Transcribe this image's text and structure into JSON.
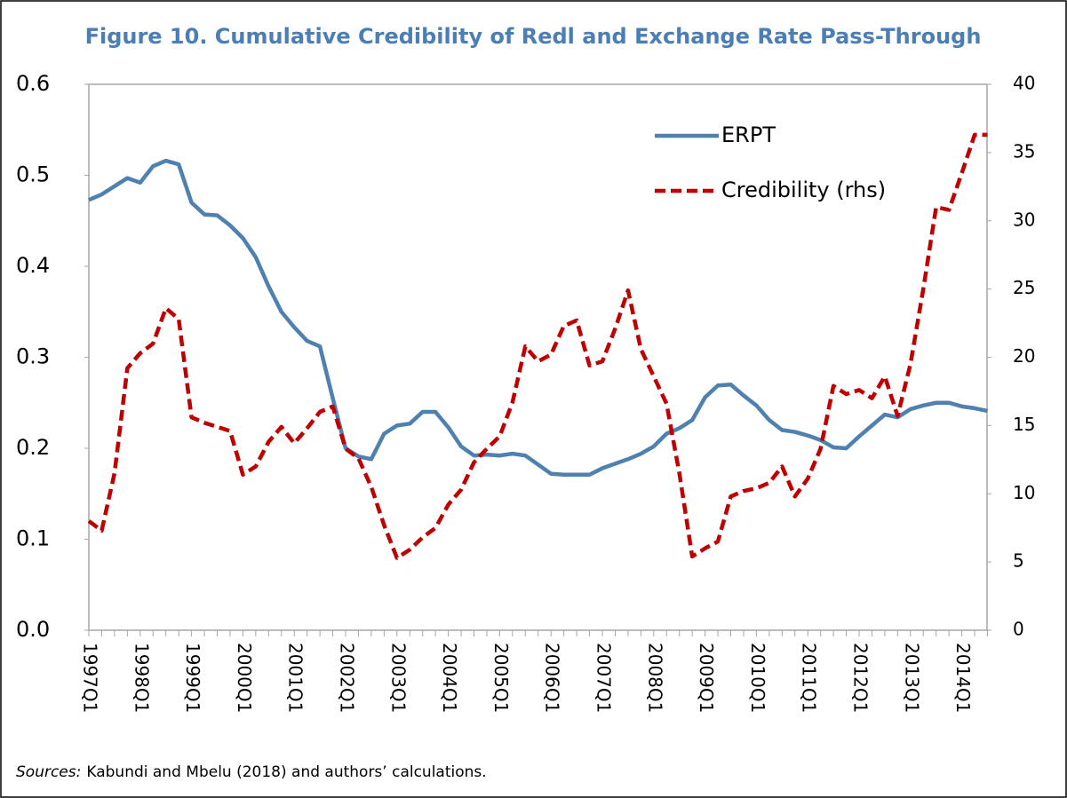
{
  "chart_data": {
    "type": "line",
    "title": "Figure 10. Cumulative Credibility of Redl and Exchange Rate Pass-Through",
    "categories": [
      "1997Q1",
      null,
      null,
      null,
      "1998Q1",
      null,
      null,
      null,
      "1999Q1",
      null,
      null,
      null,
      "2000Q1",
      null,
      null,
      null,
      "2001Q1",
      null,
      null,
      null,
      "2002Q1",
      null,
      null,
      null,
      "2003Q1",
      null,
      null,
      null,
      "2004Q1",
      null,
      null,
      null,
      "2005Q1",
      null,
      null,
      null,
      "2006Q1",
      null,
      null,
      null,
      "2007Q1",
      null,
      null,
      null,
      "2008Q1",
      null,
      null,
      null,
      "2009Q1",
      null,
      null,
      null,
      "2010Q1",
      null,
      null,
      null,
      "2011Q1",
      null,
      null,
      null,
      "2012Q1",
      null,
      null,
      null,
      "2013Q1",
      null,
      null,
      null,
      "2014Q1",
      null,
      null
    ],
    "series": [
      {
        "name": "ERPT",
        "color": "#4f81b0",
        "dash": false,
        "axis": "y",
        "values": [
          0.473,
          0.479,
          0.488,
          0.497,
          0.492,
          0.51,
          0.516,
          0.512,
          0.47,
          0.457,
          0.456,
          0.445,
          0.431,
          0.41,
          0.378,
          0.35,
          0.333,
          0.318,
          0.312,
          0.255,
          0.2,
          0.191,
          0.188,
          0.216,
          0.225,
          0.227,
          0.24,
          0.24,
          0.223,
          0.202,
          0.192,
          0.193,
          0.192,
          0.194,
          0.192,
          0.182,
          0.172,
          0.171,
          0.171,
          0.171,
          0.178,
          0.183,
          0.188,
          0.194,
          0.202,
          0.216,
          0.222,
          0.231,
          0.256,
          0.269,
          0.27,
          0.258,
          0.247,
          0.231,
          0.22,
          0.218,
          0.214,
          0.209,
          0.201,
          0.2,
          0.213,
          0.225,
          0.237,
          0.234,
          0.243,
          0.247,
          0.25,
          0.25,
          0.246,
          0.244,
          0.241
        ]
      },
      {
        "name": "Credibility (rhs)",
        "color": "#c00000",
        "dash": true,
        "axis": "y2",
        "values": [
          8.0,
          7.3,
          11.5,
          19.2,
          20.3,
          21.0,
          23.6,
          22.8,
          15.6,
          15.2,
          14.9,
          14.6,
          11.4,
          12.0,
          13.8,
          14.9,
          13.7,
          14.8,
          16.0,
          16.4,
          13.3,
          12.6,
          10.5,
          7.7,
          5.3,
          5.9,
          6.8,
          7.5,
          9.2,
          10.3,
          12.3,
          13.3,
          14.2,
          16.7,
          20.8,
          19.7,
          20.2,
          22.3,
          22.7,
          19.4,
          19.7,
          22.1,
          24.9,
          20.6,
          18.6,
          16.6,
          11.5,
          5.4,
          6.0,
          6.5,
          9.8,
          10.2,
          10.4,
          10.8,
          12.0,
          9.8,
          11.1,
          13.3,
          17.9,
          17.3,
          17.6,
          17.0,
          18.6,
          15.7,
          19.5,
          25.0,
          31.0,
          30.8,
          33.5,
          36.3,
          36.3
        ]
      }
    ],
    "ylim": [
      0,
      0.6
    ],
    "yticks": [
      {
        "value": 0,
        "label": "0.0"
      },
      0.1,
      0.2,
      0.3,
      0.4,
      0.5,
      0.6
    ],
    "y2lim": [
      0,
      40
    ],
    "y2ticks": [
      0,
      5,
      10,
      15,
      20,
      25,
      30,
      35,
      40
    ],
    "legend": "upper right",
    "source_label": "Sources:",
    "source_text": "Kabundi and Mbelu (2018) and authors’ calculations."
  }
}
